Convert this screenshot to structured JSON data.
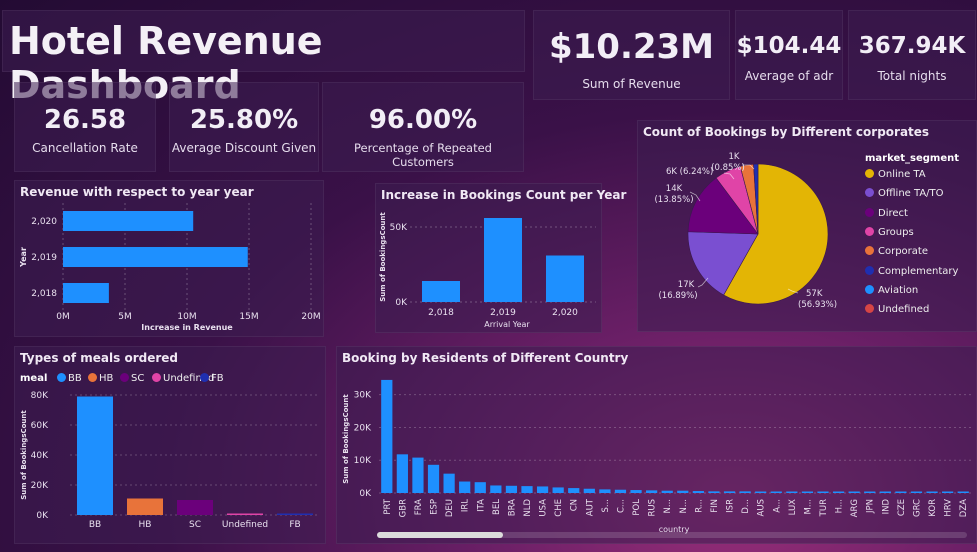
{
  "title": "Hotel Revenue Dashboard",
  "kpis": {
    "revenue": {
      "value": "$10.23M",
      "label": "Sum of Revenue"
    },
    "adr": {
      "value": "$104.44",
      "label": "Average of adr"
    },
    "nights": {
      "value": "367.94K",
      "label": "Total nights"
    },
    "cancel": {
      "value": "26.58",
      "label": "Cancellation Rate"
    },
    "discount": {
      "value": "25.80%",
      "label": "Average Discount Given"
    },
    "repeat": {
      "value": "96.00%",
      "label": "Percentage of Repeated Customers"
    }
  },
  "colors": {
    "blue": "#1e90ff",
    "orange": "#e8733a",
    "purple": "#6b007b",
    "pink": "#e044a7",
    "navy": "#1f2fb0"
  },
  "chart_data": [
    {
      "id": "revenue_year",
      "type": "bar",
      "orientation": "horizontal",
      "title": "Revenue with respect to year year",
      "xlabel": "Increase in Revenue",
      "ylabel": "Year",
      "categories": [
        "2,020",
        "2,019",
        "2,018"
      ],
      "values": [
        10.5,
        14.9,
        3.7
      ],
      "xticks": [
        "0M",
        "5M",
        "10M",
        "15M",
        "20M"
      ],
      "xlim": [
        0,
        20
      ],
      "color": "#1e90ff"
    },
    {
      "id": "bookings_year",
      "type": "bar",
      "title": "Increase in Bookings Count per Year",
      "xlabel": "Arrival Year",
      "ylabel": "Sum of BookingsCount",
      "categories": [
        "2,018",
        "2,019",
        "2,020"
      ],
      "values": [
        14000,
        56000,
        31000
      ],
      "yticks": [
        "0K",
        "50K"
      ],
      "ylim": [
        0,
        60000
      ],
      "color": "#1e90ff"
    },
    {
      "id": "market_segment",
      "type": "pie",
      "title": "Count of Bookings by Different corporates",
      "legend_title": "market_segment",
      "labels": [
        "Online TA",
        "Offline TA/TO",
        "Direct",
        "Groups",
        "Corporate",
        "Complementary",
        "Aviation",
        "Undefined"
      ],
      "values": [
        57000,
        17000,
        14000,
        6000,
        3000,
        1000,
        0,
        0
      ],
      "colors": [
        "#e3b505",
        "#7a4fd1",
        "#6b007b",
        "#e044a7",
        "#e8733a",
        "#1f2fb0",
        "#1e90ff",
        "#d64545"
      ],
      "data_labels": {
        "l_1k": "1K",
        "l_1k_pct": "(0.85%)",
        "l_6k": "6K (6.24%)",
        "l_14k": "14K",
        "l_14k_pct": "(13.85%)",
        "l_17k": "17K",
        "l_17k_pct": "(16.89%)",
        "l_57k": "57K",
        "l_57k_pct": "(56.93%)"
      }
    },
    {
      "id": "meals",
      "type": "bar",
      "title": "Types of meals ordered",
      "legend_title": "meal",
      "ylabel": "Sum of BookingsCount",
      "categories": [
        "BB",
        "HB",
        "SC",
        "Undefined",
        "FB"
      ],
      "values": [
        79000,
        11000,
        10000,
        800,
        600
      ],
      "colors": [
        "#1e90ff",
        "#e8733a",
        "#6b007b",
        "#e044a7",
        "#1f2fb0"
      ],
      "yticks": [
        "0K",
        "20K",
        "40K",
        "60K",
        "80K"
      ],
      "ylim": [
        0,
        80000
      ]
    },
    {
      "id": "country",
      "type": "bar",
      "title": "Booking by Residents of Different Country",
      "xlabel": "country",
      "ylabel": "Sum of BookingsCount",
      "categories": [
        "PRT",
        "GBR",
        "FRA",
        "ESP",
        "DEU",
        "IRL",
        "ITA",
        "BEL",
        "BRA",
        "NLD",
        "USA",
        "CHE",
        "CN",
        "AUT",
        "S...",
        "C...",
        "POL",
        "RUS",
        "N...",
        "N...",
        "R...",
        "FIN",
        "ISR",
        "D...",
        "AUS",
        "A...",
        "LUX",
        "M...",
        "TUR",
        "H...",
        "ARG",
        "JPN",
        "IND",
        "CZE",
        "GRC",
        "KOR",
        "HRV",
        "DZA"
      ],
      "values": [
        34500,
        11800,
        10800,
        8600,
        5900,
        3500,
        3300,
        2300,
        2200,
        2100,
        2000,
        1700,
        1500,
        1300,
        1100,
        1000,
        900,
        800,
        700,
        700,
        600,
        500,
        500,
        500,
        450,
        400,
        350,
        350,
        300,
        300,
        250,
        250,
        200,
        200,
        200,
        150,
        150,
        150
      ],
      "yticks": [
        "0K",
        "10K",
        "20K",
        "30K"
      ],
      "ylim": [
        0,
        36000
      ],
      "color": "#1e90ff"
    }
  ]
}
